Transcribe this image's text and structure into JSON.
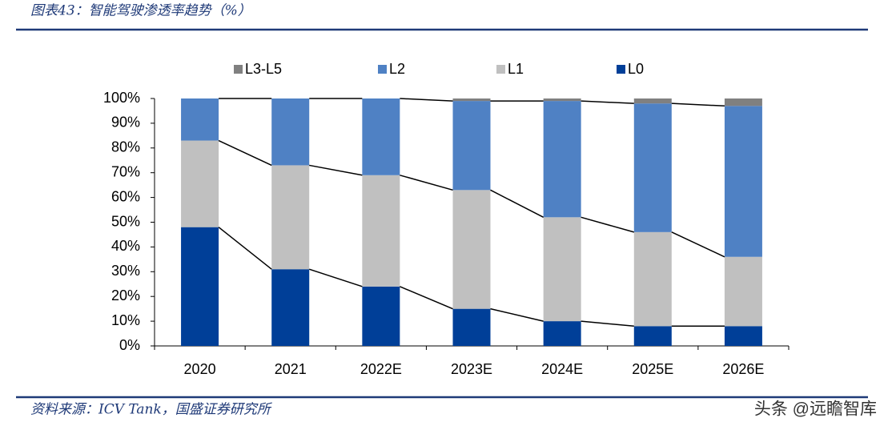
{
  "header": {
    "title": "图表43：智能驾驶渗透率趋势（%）"
  },
  "footer": {
    "source": "资料来源：ICV Tank，国盛证券研究所",
    "watermark": "头条 @远瞻智库"
  },
  "chart_data": {
    "type": "stacked-bar",
    "categories": [
      "2020",
      "2021",
      "2022E",
      "2023E",
      "2024E",
      "2025E",
      "2026E"
    ],
    "series": [
      {
        "name": "L0",
        "color": "#003f98",
        "values": [
          48,
          31,
          24,
          15,
          10,
          8,
          8
        ]
      },
      {
        "name": "L1",
        "color": "#c0c0c0",
        "values": [
          35,
          42,
          45,
          48,
          42,
          38,
          28
        ]
      },
      {
        "name": "L2",
        "color": "#4f81c4",
        "values": [
          17,
          27,
          31,
          36,
          47,
          52,
          61
        ]
      },
      {
        "name": "L3-L5",
        "color": "#808080",
        "values": [
          0,
          0,
          0,
          1,
          1,
          2,
          3
        ]
      }
    ],
    "ylim": [
      0,
      100
    ],
    "yticks": [
      {
        "value": 0,
        "label": "0%"
      },
      {
        "value": 10,
        "label": "10%"
      },
      {
        "value": 20,
        "label": "20%"
      },
      {
        "value": 30,
        "label": "30%"
      },
      {
        "value": 40,
        "label": "40%"
      },
      {
        "value": 50,
        "label": "50%"
      },
      {
        "value": 60,
        "label": "60%"
      },
      {
        "value": 70,
        "label": "70%"
      },
      {
        "value": 80,
        "label": "80%"
      },
      {
        "value": 90,
        "label": "90%"
      },
      {
        "value": 100,
        "label": "100%"
      }
    ],
    "legend": "top"
  }
}
